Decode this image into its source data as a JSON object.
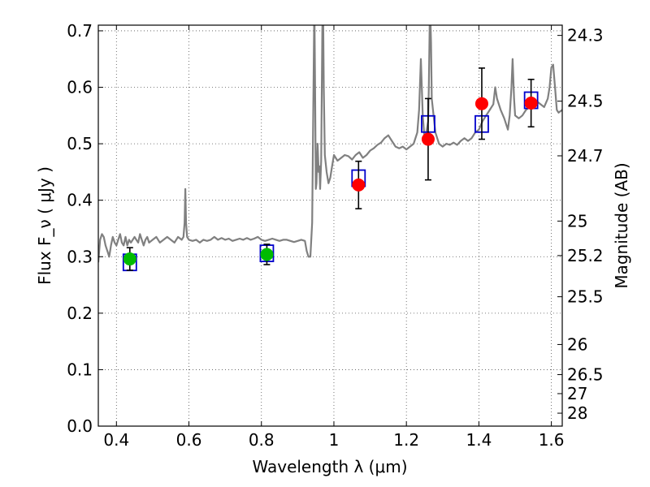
{
  "chart_data": {
    "type": "scatter",
    "title": "",
    "xlabel": "Wavelength  λ (μm)",
    "ylabel": "Flux  F_ν  ( μJy )",
    "y2label": "Magnitude (AB)",
    "xlim": [
      0.35,
      1.63
    ],
    "ylim": [
      0.0,
      0.71
    ],
    "grid": true,
    "x_ticks": [
      {
        "value": 0.4,
        "label": "0.4"
      },
      {
        "value": 0.6,
        "label": "0.6"
      },
      {
        "value": 0.8,
        "label": "0.8"
      },
      {
        "value": 1.0,
        "label": "1"
      },
      {
        "value": 1.2,
        "label": "1.2"
      },
      {
        "value": 1.4,
        "label": "1.4"
      },
      {
        "value": 1.6,
        "label": "1.6"
      }
    ],
    "y_ticks": [
      {
        "value": 0.0,
        "label": "0.0"
      },
      {
        "value": 0.1,
        "label": "0.1"
      },
      {
        "value": 0.2,
        "label": "0.2"
      },
      {
        "value": 0.3,
        "label": "0.3"
      },
      {
        "value": 0.4,
        "label": "0.4"
      },
      {
        "value": 0.5,
        "label": "0.5"
      },
      {
        "value": 0.6,
        "label": "0.6"
      },
      {
        "value": 0.7,
        "label": "0.7"
      }
    ],
    "y2_ticks": [
      {
        "value": 24.3,
        "label": "24.3"
      },
      {
        "value": 24.5,
        "label": "24.5"
      },
      {
        "value": 24.7,
        "label": "24.7"
      },
      {
        "value": 25.0,
        "label": "25"
      },
      {
        "value": 25.2,
        "label": "25.2"
      },
      {
        "value": 25.5,
        "label": "25.5"
      },
      {
        "value": 26.0,
        "label": "26"
      },
      {
        "value": 26.5,
        "label": "26.5"
      },
      {
        "value": 27.0,
        "label": "27"
      },
      {
        "value": 28.0,
        "label": "28"
      }
    ],
    "colors": {
      "spectrum": "#808080",
      "model_box": "#0000cc",
      "green_points": "#00bb00",
      "red_points": "#ff0000",
      "error_bars": "#000000",
      "grid": "#555555"
    },
    "series": [
      {
        "type": "line",
        "points": [
          [
            0.35,
            0.29
          ],
          [
            0.355,
            0.33
          ],
          [
            0.36,
            0.34
          ],
          [
            0.365,
            0.335
          ],
          [
            0.37,
            0.32
          ],
          [
            0.375,
            0.31
          ],
          [
            0.38,
            0.3
          ],
          [
            0.385,
            0.32
          ],
          [
            0.39,
            0.335
          ],
          [
            0.395,
            0.325
          ],
          [
            0.4,
            0.32
          ],
          [
            0.405,
            0.33
          ],
          [
            0.41,
            0.34
          ],
          [
            0.415,
            0.325
          ],
          [
            0.42,
            0.32
          ],
          [
            0.425,
            0.335
          ],
          [
            0.43,
            0.32
          ],
          [
            0.435,
            0.33
          ],
          [
            0.44,
            0.325
          ],
          [
            0.445,
            0.33
          ],
          [
            0.45,
            0.335
          ],
          [
            0.455,
            0.33
          ],
          [
            0.46,
            0.325
          ],
          [
            0.465,
            0.34
          ],
          [
            0.47,
            0.33
          ],
          [
            0.475,
            0.32
          ],
          [
            0.48,
            0.33
          ],
          [
            0.485,
            0.335
          ],
          [
            0.49,
            0.325
          ],
          [
            0.5,
            0.33
          ],
          [
            0.51,
            0.335
          ],
          [
            0.52,
            0.325
          ],
          [
            0.53,
            0.33
          ],
          [
            0.54,
            0.335
          ],
          [
            0.55,
            0.33
          ],
          [
            0.56,
            0.325
          ],
          [
            0.57,
            0.335
          ],
          [
            0.58,
            0.33
          ],
          [
            0.585,
            0.335
          ],
          [
            0.588,
            0.36
          ],
          [
            0.59,
            0.42
          ],
          [
            0.592,
            0.36
          ],
          [
            0.595,
            0.335
          ],
          [
            0.6,
            0.33
          ],
          [
            0.61,
            0.328
          ],
          [
            0.62,
            0.33
          ],
          [
            0.63,
            0.325
          ],
          [
            0.64,
            0.33
          ],
          [
            0.65,
            0.328
          ],
          [
            0.66,
            0.33
          ],
          [
            0.67,
            0.335
          ],
          [
            0.68,
            0.33
          ],
          [
            0.69,
            0.333
          ],
          [
            0.7,
            0.33
          ],
          [
            0.71,
            0.332
          ],
          [
            0.72,
            0.328
          ],
          [
            0.73,
            0.33
          ],
          [
            0.74,
            0.332
          ],
          [
            0.75,
            0.33
          ],
          [
            0.76,
            0.333
          ],
          [
            0.77,
            0.33
          ],
          [
            0.78,
            0.332
          ],
          [
            0.79,
            0.335
          ],
          [
            0.8,
            0.33
          ],
          [
            0.81,
            0.328
          ],
          [
            0.82,
            0.33
          ],
          [
            0.83,
            0.332
          ],
          [
            0.84,
            0.33
          ],
          [
            0.85,
            0.328
          ],
          [
            0.86,
            0.33
          ],
          [
            0.87,
            0.33
          ],
          [
            0.88,
            0.328
          ],
          [
            0.89,
            0.326
          ],
          [
            0.9,
            0.328
          ],
          [
            0.91,
            0.33
          ],
          [
            0.92,
            0.328
          ],
          [
            0.925,
            0.31
          ],
          [
            0.93,
            0.3
          ],
          [
            0.935,
            0.3
          ],
          [
            0.94,
            0.36
          ],
          [
            0.943,
            0.55
          ],
          [
            0.946,
            0.75
          ],
          [
            0.948,
            0.6
          ],
          [
            0.95,
            0.42
          ],
          [
            0.952,
            0.43
          ],
          [
            0.955,
            0.5
          ],
          [
            0.958,
            0.45
          ],
          [
            0.96,
            0.46
          ],
          [
            0.962,
            0.42
          ],
          [
            0.965,
            0.47
          ],
          [
            0.968,
            0.7
          ],
          [
            0.97,
            0.75
          ],
          [
            0.972,
            0.6
          ],
          [
            0.975,
            0.48
          ],
          [
            0.98,
            0.45
          ],
          [
            0.985,
            0.43
          ],
          [
            0.99,
            0.44
          ],
          [
            0.995,
            0.46
          ],
          [
            1.0,
            0.48
          ],
          [
            1.01,
            0.47
          ],
          [
            1.02,
            0.475
          ],
          [
            1.03,
            0.48
          ],
          [
            1.04,
            0.478
          ],
          [
            1.05,
            0.472
          ],
          [
            1.06,
            0.48
          ],
          [
            1.07,
            0.485
          ],
          [
            1.08,
            0.475
          ],
          [
            1.09,
            0.48
          ],
          [
            1.1,
            0.488
          ],
          [
            1.11,
            0.492
          ],
          [
            1.12,
            0.498
          ],
          [
            1.13,
            0.502
          ],
          [
            1.14,
            0.51
          ],
          [
            1.15,
            0.515
          ],
          [
            1.16,
            0.505
          ],
          [
            1.17,
            0.495
          ],
          [
            1.18,
            0.492
          ],
          [
            1.19,
            0.495
          ],
          [
            1.2,
            0.49
          ],
          [
            1.21,
            0.495
          ],
          [
            1.22,
            0.5
          ],
          [
            1.23,
            0.52
          ],
          [
            1.235,
            0.56
          ],
          [
            1.24,
            0.65
          ],
          [
            1.245,
            0.55
          ],
          [
            1.25,
            0.51
          ],
          [
            1.255,
            0.52
          ],
          [
            1.26,
            0.54
          ],
          [
            1.262,
            0.6
          ],
          [
            1.265,
            0.75
          ],
          [
            1.268,
            0.68
          ],
          [
            1.27,
            0.58
          ],
          [
            1.28,
            0.52
          ],
          [
            1.29,
            0.5
          ],
          [
            1.3,
            0.495
          ],
          [
            1.31,
            0.5
          ],
          [
            1.32,
            0.498
          ],
          [
            1.33,
            0.502
          ],
          [
            1.34,
            0.498
          ],
          [
            1.35,
            0.505
          ],
          [
            1.36,
            0.51
          ],
          [
            1.37,
            0.505
          ],
          [
            1.38,
            0.51
          ],
          [
            1.39,
            0.52
          ],
          [
            1.4,
            0.525
          ],
          [
            1.41,
            0.54
          ],
          [
            1.42,
            0.55
          ],
          [
            1.43,
            0.56
          ],
          [
            1.44,
            0.57
          ],
          [
            1.445,
            0.6
          ],
          [
            1.45,
            0.58
          ],
          [
            1.46,
            0.56
          ],
          [
            1.47,
            0.545
          ],
          [
            1.48,
            0.525
          ],
          [
            1.485,
            0.55
          ],
          [
            1.49,
            0.6
          ],
          [
            1.493,
            0.65
          ],
          [
            1.497,
            0.58
          ],
          [
            1.5,
            0.55
          ],
          [
            1.51,
            0.545
          ],
          [
            1.52,
            0.55
          ],
          [
            1.53,
            0.56
          ],
          [
            1.54,
            0.565
          ],
          [
            1.55,
            0.57
          ],
          [
            1.56,
            0.575
          ],
          [
            1.57,
            0.57
          ],
          [
            1.58,
            0.565
          ],
          [
            1.59,
            0.58
          ],
          [
            1.595,
            0.6
          ],
          [
            1.6,
            0.635
          ],
          [
            1.605,
            0.64
          ],
          [
            1.61,
            0.6
          ],
          [
            1.615,
            0.56
          ],
          [
            1.62,
            0.555
          ],
          [
            1.63,
            0.56
          ]
        ]
      },
      {
        "type": "model_box",
        "points": [
          [
            0.437,
            0.29
          ],
          [
            0.815,
            0.306
          ],
          [
            1.068,
            0.439
          ],
          [
            1.26,
            0.535
          ],
          [
            1.408,
            0.535
          ],
          [
            1.544,
            0.577
          ]
        ]
      },
      {
        "type": "points_with_error",
        "color_key": "green_points",
        "points": [
          [
            0.437,
            0.296,
            0.02
          ],
          [
            0.815,
            0.304,
            0.018
          ]
        ]
      },
      {
        "type": "points_with_error",
        "color_key": "red_points",
        "points": [
          [
            1.068,
            0.427,
            0.042
          ],
          [
            1.26,
            0.508,
            0.072
          ],
          [
            1.408,
            0.571,
            0.063
          ],
          [
            1.544,
            0.572,
            0.042
          ]
        ]
      }
    ]
  }
}
